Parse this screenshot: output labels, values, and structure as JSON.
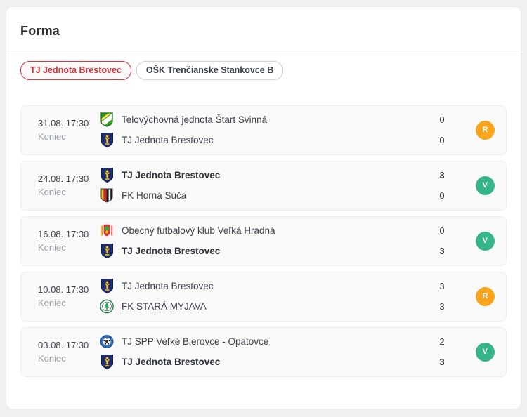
{
  "widget": {
    "title": "Forma",
    "tabs": [
      {
        "label": "TJ Jednota Brestovec",
        "active": true
      },
      {
        "label": "OŠK Trenčianske Stankovce B",
        "active": false
      }
    ],
    "matches": [
      {
        "date": "31.08. 17:30",
        "status": "Koniec",
        "home": {
          "name": "Telovýchovná jednota Štart Svinná",
          "score": "0",
          "winner": false,
          "logo": "start-svinna-crest-icon"
        },
        "away": {
          "name": "TJ Jednota Brestovec",
          "score": "0",
          "winner": false,
          "logo": "jednota-brestovec-crest-icon"
        },
        "result": "R"
      },
      {
        "date": "24.08. 17:30",
        "status": "Koniec",
        "home": {
          "name": "TJ Jednota Brestovec",
          "score": "3",
          "winner": true,
          "logo": "jednota-brestovec-crest-icon"
        },
        "away": {
          "name": "FK Horná Súča",
          "score": "0",
          "winner": false,
          "logo": "horna-suca-crest-icon"
        },
        "result": "V"
      },
      {
        "date": "16.08. 17:30",
        "status": "Koniec",
        "home": {
          "name": "Obecný futbalový klub Veľká Hradná",
          "score": "0",
          "winner": false,
          "logo": "velka-hradna-crest-icon"
        },
        "away": {
          "name": "TJ Jednota Brestovec",
          "score": "3",
          "winner": true,
          "logo": "jednota-brestovec-crest-icon"
        },
        "result": "V"
      },
      {
        "date": "10.08. 17:30",
        "status": "Koniec",
        "home": {
          "name": "TJ Jednota Brestovec",
          "score": "3",
          "winner": false,
          "logo": "jednota-brestovec-crest-icon"
        },
        "away": {
          "name": "FK STARÁ MYJAVA",
          "score": "3",
          "winner": false,
          "logo": "stara-myjava-crest-icon"
        },
        "result": "R"
      },
      {
        "date": "03.08. 17:30",
        "status": "Koniec",
        "home": {
          "name": "TJ SPP Veľké Bierovce - Opatovce",
          "score": "2",
          "winner": false,
          "logo": "bierovce-opatovce-crest-icon"
        },
        "away": {
          "name": "TJ Jednota Brestovec",
          "score": "3",
          "winner": true,
          "logo": "jednota-brestovec-crest-icon"
        },
        "result": "V"
      }
    ],
    "result_badges": {
      "R": {
        "label": "R",
        "color": "#f8a41c"
      },
      "V": {
        "label": "V",
        "color": "#36b588"
      }
    }
  },
  "colors": {
    "accent_red": "#c9393f",
    "badge_draw": "#f8a41c",
    "badge_win": "#36b588",
    "page_bg": "#eff0f2",
    "card_bg": "#f9f9fa"
  }
}
